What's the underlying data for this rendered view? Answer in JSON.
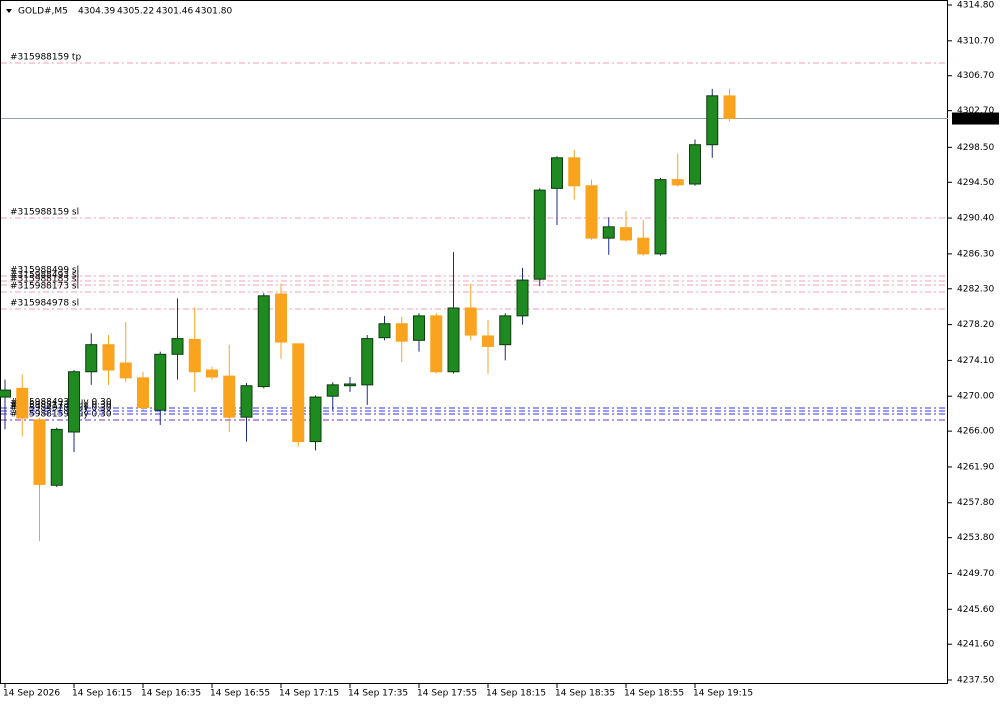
{
  "chart_data": {
    "type": "candlestick",
    "title": "GOLD#,M5",
    "categories": [
      "14 Sep 2026",
      null,
      null,
      null,
      "14 Sep 16:15",
      null,
      null,
      null,
      "14 Sep 16:35",
      null,
      null,
      null,
      "14 Sep 16:55",
      null,
      null,
      null,
      "14 Sep 17:15",
      null,
      null,
      null,
      "14 Sep 17:35",
      null,
      null,
      null,
      "14 Sep 17:55",
      null,
      null,
      null,
      "14 Sep 18:15",
      null,
      null,
      null,
      "14 Sep 18:35",
      null,
      null,
      null,
      "14 Sep 18:55",
      null,
      null,
      null,
      "14 Sep 19:15",
      null,
      null
    ],
    "open": [
      4269.9,
      4270.9,
      4267.3,
      4259.8,
      4265.9,
      4272.8,
      4275.9,
      4273.8,
      4272.1,
      4268.4,
      4274.8,
      4276.5,
      4273.0,
      4272.3,
      4267.6,
      4271.1,
      4281.7,
      4276.0,
      4264.8,
      4270.0,
      4271.2,
      4271.3,
      4276.7,
      4278.3,
      4276.4,
      4279.2,
      4272.8,
      4280.1,
      4276.9,
      4275.9,
      4279.2,
      4283.4,
      4293.8,
      4297.3,
      4294.1,
      4288.1,
      4289.3,
      4288.1,
      4286.3,
      4294.8,
      4294.3,
      4298.8,
      4304.39
    ],
    "high": [
      4271.9,
      4272.5,
      4267.5,
      4266.4,
      4273.0,
      4277.2,
      4277.0,
      4278.5,
      4272.8,
      4275.1,
      4281.2,
      4280.2,
      4273.4,
      4275.9,
      4271.5,
      4281.8,
      4282.9,
      4276.0,
      4270.1,
      4271.6,
      4272.2,
      4277.0,
      4279.2,
      4279.1,
      4279.5,
      4279.5,
      4286.5,
      4282.9,
      4278.7,
      4279.5,
      4284.7,
      4293.8,
      4297.5,
      4298.2,
      4294.8,
      4290.5,
      4291.2,
      4290.2,
      4295.0,
      4297.8,
      4299.4,
      4305.2,
      4305.22
    ],
    "low": [
      4266.2,
      4265.4,
      4253.4,
      4259.6,
      4263.6,
      4271.3,
      4271.3,
      4271.6,
      4268.4,
      4266.7,
      4271.9,
      4270.5,
      4271.9,
      4265.9,
      4264.8,
      4270.9,
      4274.3,
      4264.2,
      4263.8,
      4268.4,
      4270.5,
      4269.0,
      4276.4,
      4273.9,
      4275.1,
      4272.6,
      4272.6,
      4276.4,
      4272.6,
      4274.1,
      4278.2,
      4282.6,
      4289.6,
      4292.5,
      4287.9,
      4286.2,
      4287.7,
      4286.1,
      4286.1,
      4294.0,
      4294.1,
      4297.3,
      4301.46
    ],
    "close": [
      4270.7,
      4267.5,
      4259.9,
      4266.2,
      4272.8,
      4275.9,
      4273.0,
      4272.1,
      4268.7,
      4274.8,
      4276.6,
      4272.8,
      4272.2,
      4267.6,
      4271.2,
      4281.5,
      4276.2,
      4264.8,
      4269.9,
      4271.3,
      4271.4,
      4276.6,
      4278.3,
      4276.3,
      4279.2,
      4272.8,
      4280.1,
      4277.0,
      4275.7,
      4279.2,
      4283.3,
      4293.6,
      4297.3,
      4294.1,
      4288.1,
      4289.4,
      4287.9,
      4286.3,
      4294.8,
      4294.2,
      4298.8,
      4304.4,
      4301.8
    ],
    "up_color": "#1f8a1f",
    "down_color": "#f9a31f",
    "up_wick_color": "#1c2a8c",
    "current_price": {
      "value": 4301.8,
      "label": "4301.80"
    },
    "order_lines": [
      {
        "label": "#315988159 tp",
        "value": 4308.16,
        "color": "#f2a0b4"
      },
      {
        "label": "#315988159 sl",
        "value": 4290.41,
        "color": "#f2a0b4"
      },
      {
        "label": "#315988499 sl",
        "value": 4283.77,
        "color": "#f2a0b4"
      },
      {
        "label": "#315988493 sl",
        "value": 4283.2,
        "color": "#f2a0b4"
      },
      {
        "label": "#315988185 sl",
        "value": 4282.74,
        "color": "#f2a0b4"
      },
      {
        "label": "#315988173 sl",
        "value": 4281.94,
        "color": "#f2a0b4"
      },
      {
        "label": "#315984978 sl",
        "value": 4279.98,
        "color": "#f2a0b4"
      },
      {
        "label": "#315988493 buy 0.30",
        "value": 4268.65,
        "color": "#3535e8"
      },
      {
        "label": "#315988173 buy 0.30",
        "value": 4268.31,
        "color": "#3535e8"
      },
      {
        "label": "#315984978 buy 0.30",
        "value": 4267.96,
        "color": "#3535e8"
      },
      {
        "label": "#315988159 buy 0.30",
        "value": 4267.27,
        "color": "#7a2cc0"
      }
    ],
    "ylim": [
      4237.5,
      4314.8
    ],
    "yticks": [
      {
        "value": 4314.8,
        "label": "4314.80"
      },
      {
        "value": 4310.7,
        "label": "4310.70"
      },
      {
        "value": 4306.7,
        "label": "4306.70"
      },
      {
        "value": 4302.7,
        "label": "4302.70"
      },
      {
        "value": 4298.5,
        "label": "4298.50"
      },
      {
        "value": 4294.5,
        "label": "4294.50"
      },
      {
        "value": 4290.4,
        "label": "4290.40"
      },
      {
        "value": 4286.3,
        "label": "4286.30"
      },
      {
        "value": 4282.3,
        "label": "4282.30"
      },
      {
        "value": 4278.2,
        "label": "4278.20"
      },
      {
        "value": 4274.1,
        "label": "4274.10"
      },
      {
        "value": 4270.0,
        "label": "4270.00"
      },
      {
        "value": 4266.0,
        "label": "4266.00"
      },
      {
        "value": 4261.9,
        "label": "4261.90"
      },
      {
        "value": 4257.8,
        "label": "4257.80"
      },
      {
        "value": 4253.8,
        "label": "4253.80"
      },
      {
        "value": 4249.7,
        "label": "4249.70"
      },
      {
        "value": 4245.6,
        "label": "4245.60"
      },
      {
        "value": 4241.6,
        "label": "4241.60"
      },
      {
        "value": 4237.5,
        "label": "4237.50"
      }
    ]
  }
}
